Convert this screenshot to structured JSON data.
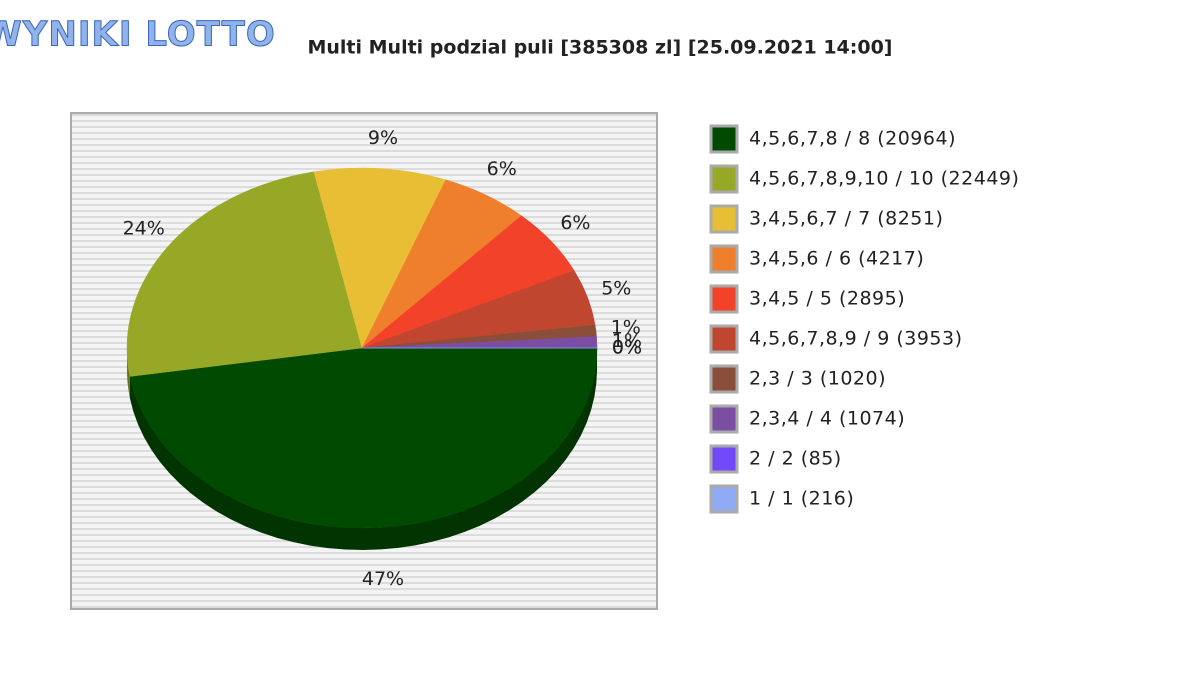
{
  "logo": "WYNIKI LOTTO",
  "chart_data": {
    "type": "pie",
    "title": "Multi Multi podzial puli [385308 zl] [25.09.2021 14:00]",
    "categories": [
      "4,5,6,7,8 / 8 (20964)",
      "4,5,6,7,8,9,10 / 10 (22449)",
      "3,4,5,6,7 / 7 (8251)",
      "3,4,5,6 / 6 (4217)",
      "3,4,5 / 5 (2895)",
      "4,5,6,7,8,9 / 9 (3953)",
      "2,3 / 3 (1020)",
      "2,3,4 / 4 (1074)",
      "2 / 2 (85)",
      "1 / 1 (216)"
    ],
    "values": [
      47,
      24,
      9,
      6,
      6,
      5,
      1,
      1,
      0,
      0
    ],
    "value_labels": [
      "47%",
      "24%",
      "9%",
      "6%",
      "6%",
      "5%",
      "1%",
      "1%",
      "0%",
      "0%"
    ],
    "colors": [
      "#014a01",
      "#97a826",
      "#e8be34",
      "#ef7f2c",
      "#f2432a",
      "#c0462f",
      "#8a4e3a",
      "#7b4ea4",
      "#7249f8",
      "#8fa9f4"
    ]
  }
}
